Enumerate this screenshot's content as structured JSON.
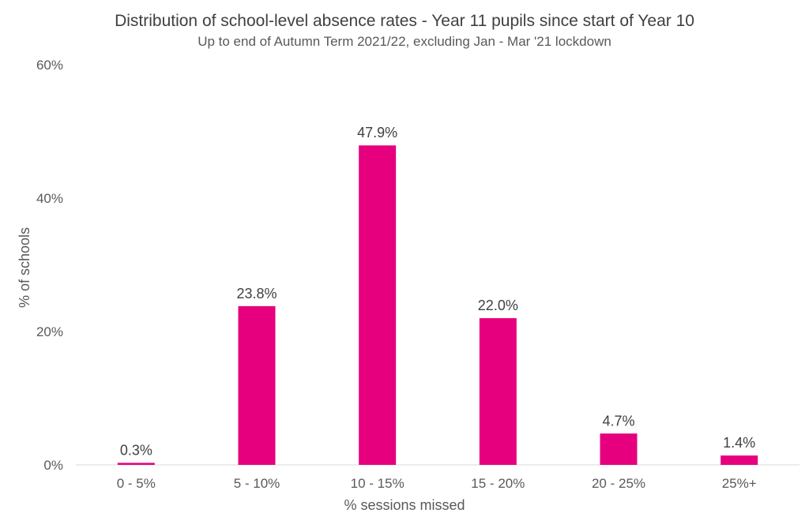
{
  "chart_data": {
    "type": "bar",
    "title": "Distribution of school-level absence rates - Year 11 pupils since start of Year 10",
    "subtitle": "Up to end of Autumn Term 2021/22, excluding Jan - Mar '21 lockdown",
    "xlabel": "% sessions missed",
    "ylabel": "% of schools",
    "categories": [
      "0 - 5%",
      "5 - 10%",
      "10 - 15%",
      "15 - 20%",
      "20 - 25%",
      "25%+"
    ],
    "values": [
      0.3,
      23.8,
      47.9,
      22.0,
      4.7,
      1.4
    ],
    "value_labels": [
      "0.3%",
      "23.8%",
      "47.9%",
      "22.0%",
      "4.7%",
      "1.4%"
    ],
    "ylim": [
      0,
      60
    ],
    "yticks": [
      0,
      20,
      40,
      60
    ],
    "ytick_labels": [
      "0%",
      "20%",
      "40%",
      "60%"
    ],
    "grid": false,
    "legend": "none",
    "bar_color": "#E6007E"
  }
}
